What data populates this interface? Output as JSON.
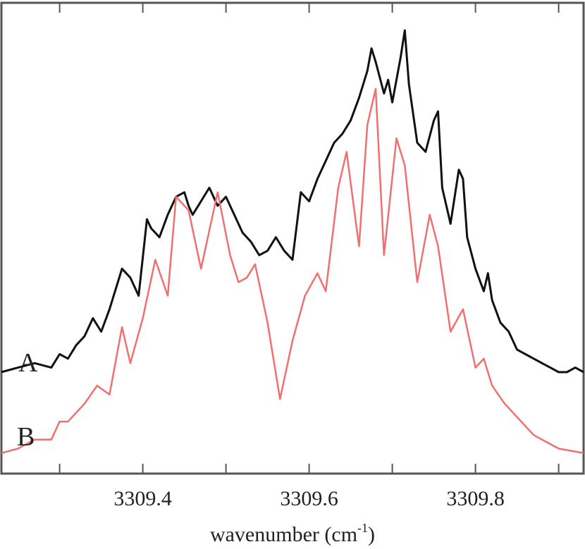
{
  "chart_data": {
    "type": "line",
    "xlabel": "wavenumber (cm",
    "xlabel_sup": "-1",
    "xlabel_close": ")",
    "ylabel": "",
    "xlim": [
      3309.23,
      3309.93
    ],
    "ylim": [
      0,
      1
    ],
    "xticks": [
      3309.3,
      3309.4,
      3309.5,
      3309.6,
      3309.7,
      3309.8,
      3309.9
    ],
    "xtick_labels": [
      {
        "value": 3309.4,
        "label": "3309.4"
      },
      {
        "value": 3309.6,
        "label": "3309.6"
      },
      {
        "value": 3309.8,
        "label": "3309.8"
      }
    ],
    "grid": false,
    "series": [
      {
        "name": "A",
        "color": "#111111",
        "x": [
          3309.23,
          3309.25,
          3309.27,
          3309.29,
          3309.3,
          3309.31,
          3309.32,
          3309.33,
          3309.34,
          3309.35,
          3309.36,
          3309.37,
          3309.375,
          3309.385,
          3309.395,
          3309.405,
          3309.41,
          3309.42,
          3309.43,
          3309.44,
          3309.45,
          3309.455,
          3309.46,
          3309.47,
          3309.48,
          3309.49,
          3309.5,
          3309.51,
          3309.52,
          3309.53,
          3309.54,
          3309.55,
          3309.56,
          3309.57,
          3309.58,
          3309.59,
          3309.6,
          3309.61,
          3309.62,
          3309.63,
          3309.64,
          3309.65,
          3309.66,
          3309.67,
          3309.675,
          3309.68,
          3309.69,
          3309.695,
          3309.7,
          3309.71,
          3309.715,
          3309.72,
          3309.73,
          3309.74,
          3309.75,
          3309.755,
          3309.76,
          3309.77,
          3309.78,
          3309.785,
          3309.79,
          3309.8,
          3309.81,
          3309.815,
          3309.82,
          3309.83,
          3309.84,
          3309.85,
          3309.86,
          3309.87,
          3309.88,
          3309.89,
          3309.9,
          3309.91,
          3309.92,
          3309.93
        ],
        "y": [
          0.21,
          0.22,
          0.23,
          0.22,
          0.25,
          0.24,
          0.27,
          0.29,
          0.33,
          0.3,
          0.35,
          0.41,
          0.44,
          0.42,
          0.38,
          0.55,
          0.53,
          0.51,
          0.56,
          0.6,
          0.61,
          0.58,
          0.56,
          0.59,
          0.62,
          0.58,
          0.6,
          0.56,
          0.52,
          0.5,
          0.47,
          0.48,
          0.51,
          0.48,
          0.46,
          0.61,
          0.59,
          0.64,
          0.68,
          0.72,
          0.74,
          0.77,
          0.82,
          0.88,
          0.93,
          0.9,
          0.83,
          0.86,
          0.81,
          0.91,
          0.97,
          0.85,
          0.72,
          0.7,
          0.77,
          0.79,
          0.62,
          0.54,
          0.66,
          0.64,
          0.51,
          0.44,
          0.39,
          0.43,
          0.37,
          0.32,
          0.3,
          0.26,
          0.25,
          0.24,
          0.23,
          0.22,
          0.21,
          0.21,
          0.22,
          0.21
        ]
      },
      {
        "name": "B",
        "color": "#f07070",
        "x": [
          3309.23,
          3309.25,
          3309.27,
          3309.29,
          3309.3,
          3309.31,
          3309.33,
          3309.345,
          3309.36,
          3309.375,
          3309.385,
          3309.4,
          3309.415,
          3309.43,
          3309.44,
          3309.455,
          3309.47,
          3309.49,
          3309.505,
          3309.515,
          3309.525,
          3309.535,
          3309.55,
          3309.565,
          3309.58,
          3309.595,
          3309.61,
          3309.62,
          3309.635,
          3309.645,
          3309.66,
          3309.67,
          3309.68,
          3309.69,
          3309.705,
          3309.715,
          3309.73,
          3309.745,
          3309.755,
          3309.77,
          3309.785,
          3309.8,
          3309.81,
          3309.82,
          3309.835,
          3309.85,
          3309.87,
          3309.9,
          3309.93
        ],
        "y": [
          0.03,
          0.04,
          0.06,
          0.06,
          0.1,
          0.1,
          0.14,
          0.18,
          0.16,
          0.31,
          0.23,
          0.33,
          0.46,
          0.38,
          0.6,
          0.57,
          0.44,
          0.61,
          0.47,
          0.41,
          0.42,
          0.45,
          0.32,
          0.15,
          0.28,
          0.38,
          0.43,
          0.39,
          0.62,
          0.7,
          0.49,
          0.76,
          0.84,
          0.47,
          0.73,
          0.67,
          0.41,
          0.56,
          0.49,
          0.3,
          0.35,
          0.22,
          0.24,
          0.18,
          0.14,
          0.11,
          0.07,
          0.04,
          0.03
        ]
      }
    ]
  }
}
